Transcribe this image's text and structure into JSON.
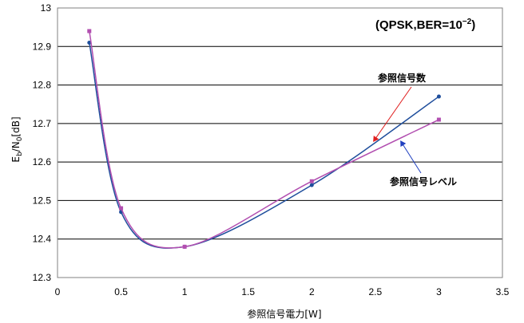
{
  "chart_data": {
    "type": "line",
    "condition": {
      "text": "(QPSK,BER=10",
      "sup": "−2",
      "close": ")"
    },
    "xlabel": "参照信号電力[W]",
    "ylabel": {
      "main": "E",
      "sub1": "b",
      "slash": "/N",
      "sub2": "0",
      "unit": "[dB]"
    },
    "xlim": [
      0,
      3.5
    ],
    "ylim": [
      12.3,
      13
    ],
    "x_ticks": [
      "0",
      "0.5",
      "1",
      "1.5",
      "2",
      "2.5",
      "3",
      "3.5"
    ],
    "y_ticks": [
      "12.3",
      "12.4",
      "12.5",
      "12.6",
      "12.7",
      "12.8",
      "12.9",
      "13"
    ],
    "grid": {
      "horizontal": true,
      "vertical": false
    },
    "series": [
      {
        "name": "参照信号数",
        "color": "#1f4e9c",
        "marker": "circle",
        "x": [
          0.25,
          0.5,
          1,
          2,
          3
        ],
        "y": [
          12.91,
          12.47,
          12.38,
          12.54,
          12.77
        ]
      },
      {
        "name": "参照信号レベル",
        "color": "#b24fb0",
        "marker": "square",
        "x": [
          0.25,
          0.5,
          1,
          2,
          3
        ],
        "y": [
          12.94,
          12.48,
          12.38,
          12.55,
          12.71
        ]
      }
    ],
    "annotations": [
      {
        "text": "参照信号数",
        "arrow_color": "#e02020",
        "target_series": 0,
        "target_x": 2.48
      },
      {
        "text": "参照信号レベル",
        "arrow_color": "#2040c0",
        "target_series": 1,
        "target_x": 2.7
      }
    ]
  }
}
